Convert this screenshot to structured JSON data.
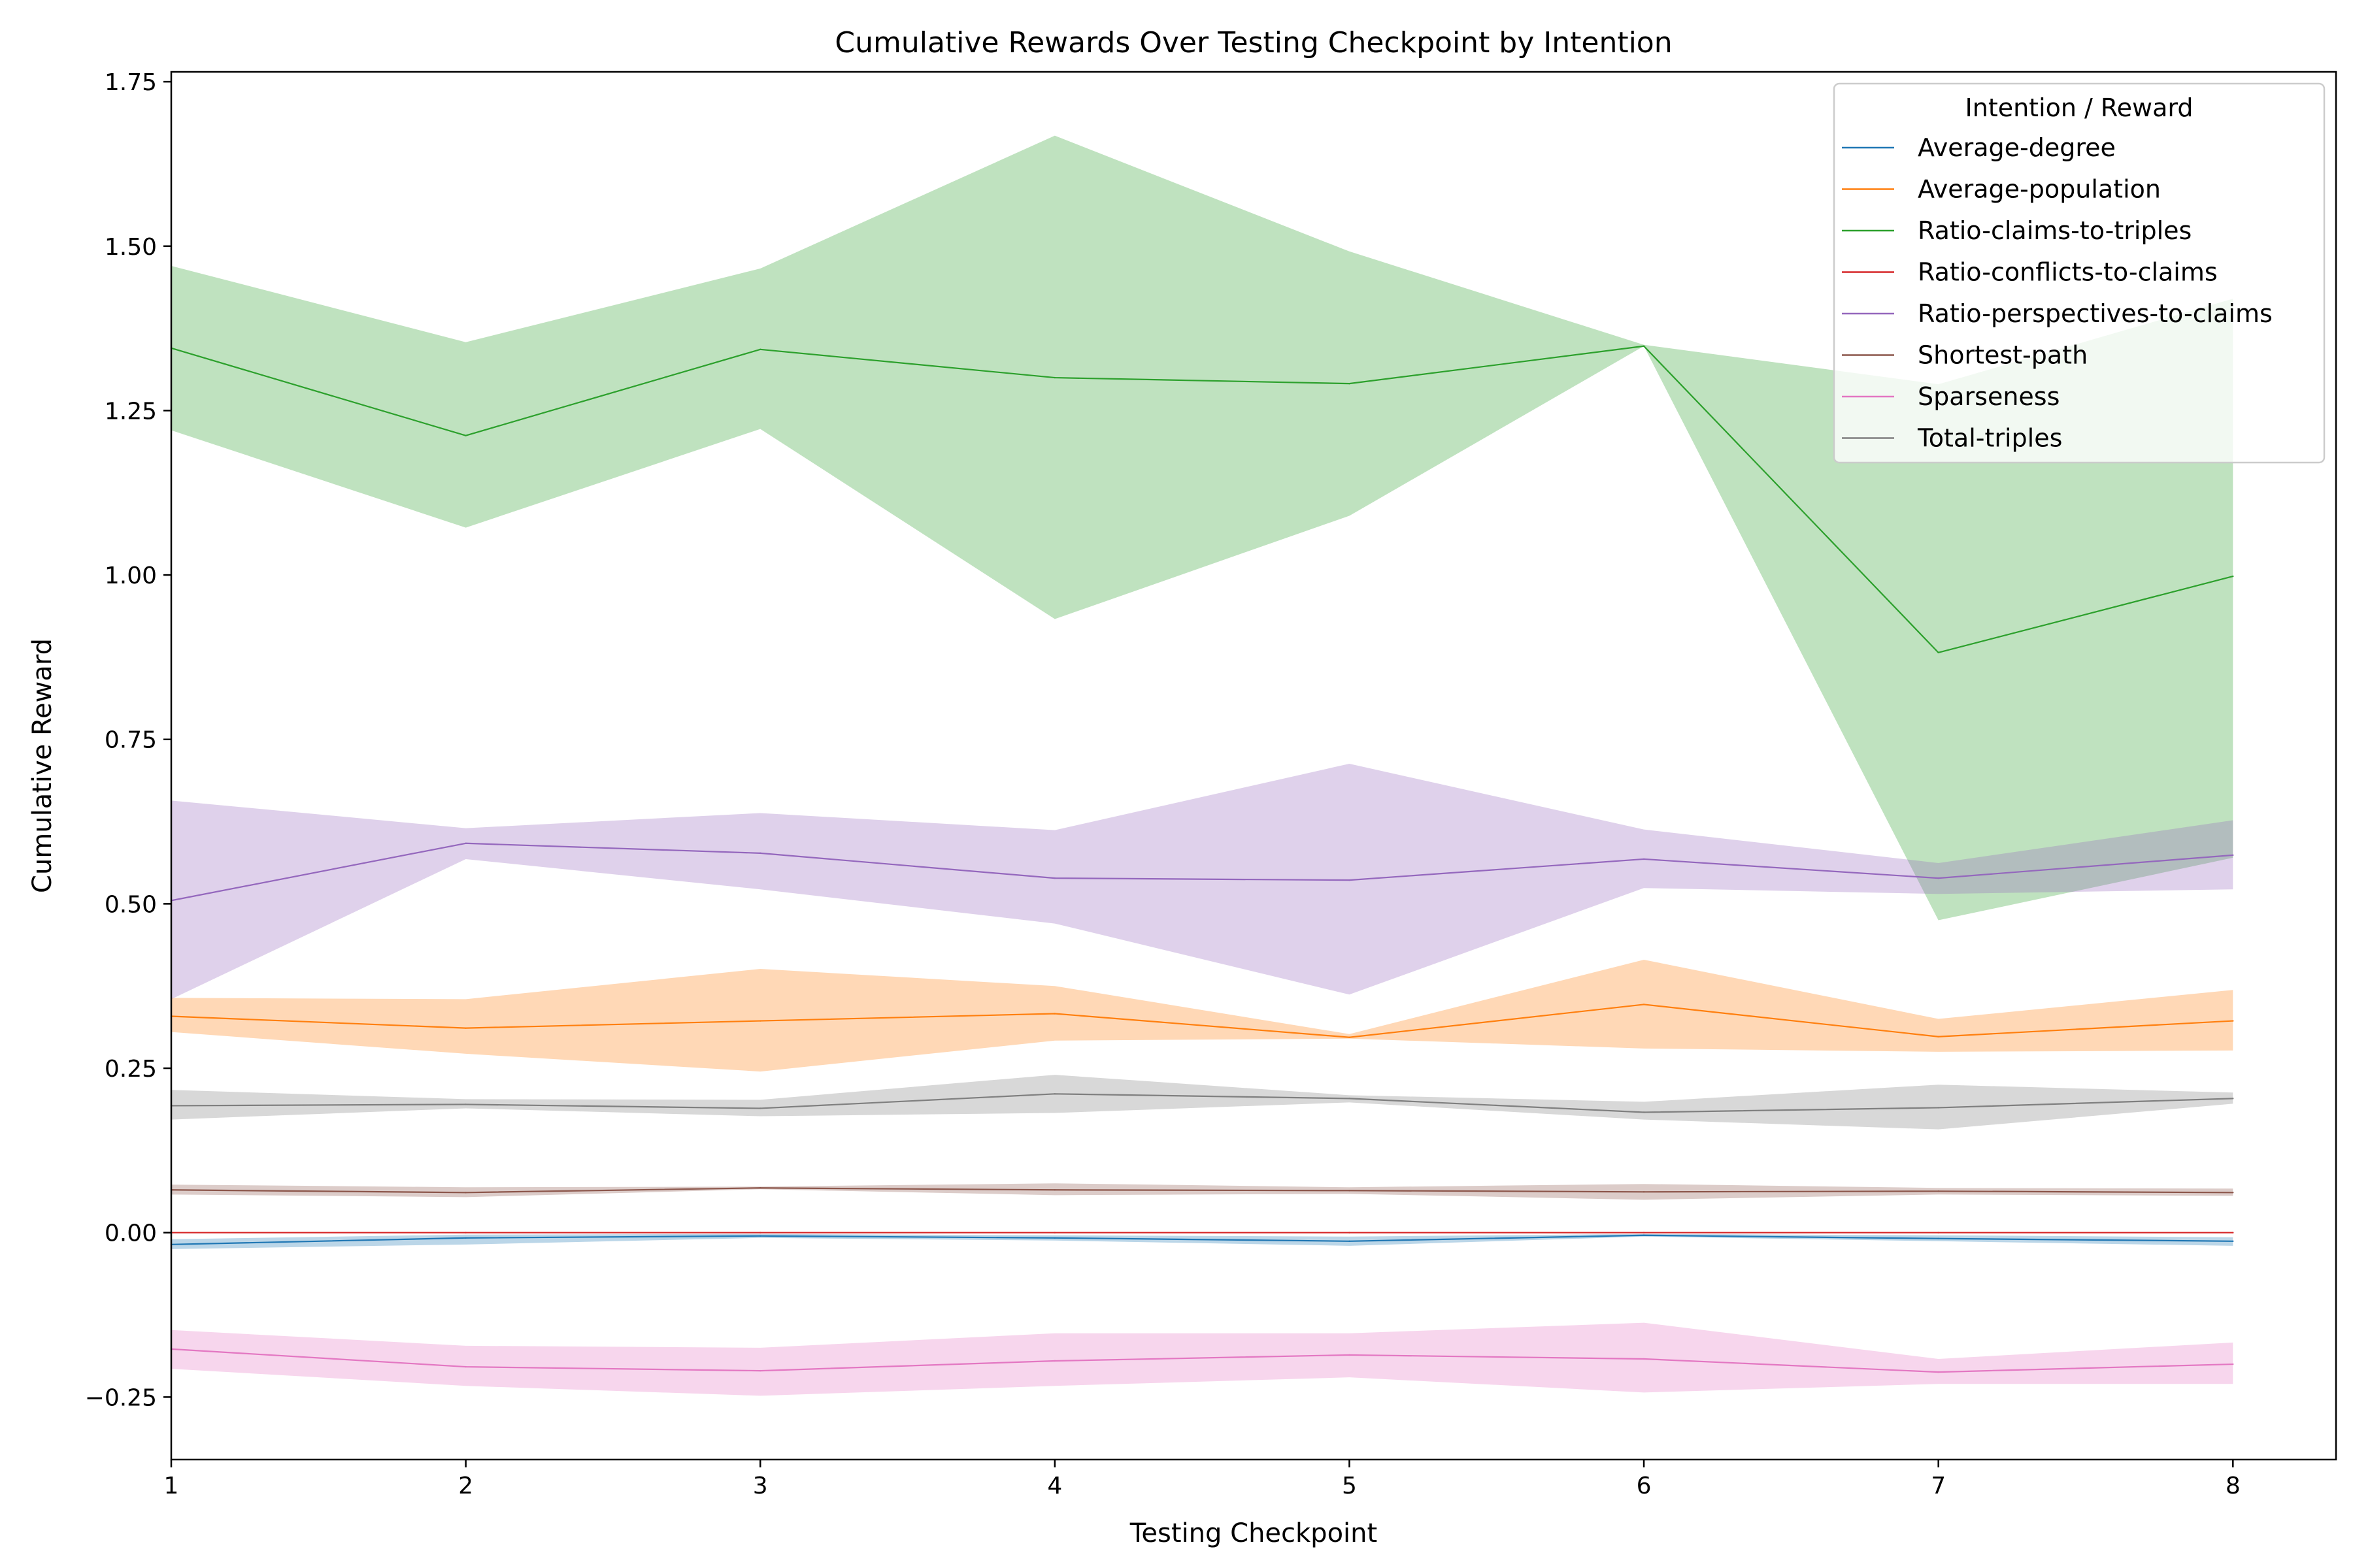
{
  "chart_data": {
    "type": "line",
    "title": "Cumulative Rewards Over Testing Checkpoint by Intention",
    "xlabel": "Testing Checkpoint",
    "ylabel": "Cumulative Reward",
    "xlim": [
      1,
      8.35
    ],
    "ylim": [
      -0.345,
      1.765
    ],
    "x": [
      1,
      2,
      3,
      4,
      5,
      6,
      7,
      8
    ],
    "x_ticks": [
      "1",
      "2",
      "3",
      "4",
      "5",
      "6",
      "7",
      "8"
    ],
    "y_ticks": [
      -0.25,
      0.0,
      0.25,
      0.5,
      0.75,
      1.0,
      1.25,
      1.5,
      1.75
    ],
    "y_tick_labels": [
      "−0.25",
      "0.00",
      "0.25",
      "0.50",
      "0.75",
      "1.00",
      "1.25",
      "1.50",
      "1.75"
    ],
    "grid": false,
    "legend": {
      "title": "Intention / Reward",
      "placement": "top-right"
    },
    "series": [
      {
        "name": "Average-degree",
        "color": "#1f77b4",
        "values": [
          -0.018,
          -0.008,
          -0.005,
          -0.008,
          -0.013,
          -0.004,
          -0.009,
          -0.013
        ],
        "lower": [
          -0.025,
          -0.018,
          -0.008,
          -0.012,
          -0.02,
          -0.006,
          -0.013,
          -0.02
        ],
        "upper": [
          -0.01,
          -0.003,
          -0.002,
          -0.004,
          -0.006,
          -0.002,
          -0.004,
          -0.007
        ]
      },
      {
        "name": "Average-population",
        "color": "#ff7f0e",
        "values": [
          0.329,
          0.311,
          0.322,
          0.333,
          0.297,
          0.347,
          0.298,
          0.322
        ],
        "lower": [
          0.305,
          0.272,
          0.245,
          0.292,
          0.295,
          0.28,
          0.275,
          0.277
        ],
        "upper": [
          0.357,
          0.355,
          0.401,
          0.375,
          0.302,
          0.415,
          0.325,
          0.369
        ]
      },
      {
        "name": "Ratio-claims-to-triples",
        "color": "#2ca02c",
        "values": [
          1.345,
          1.212,
          1.343,
          1.3,
          1.291,
          1.348,
          0.882,
          0.998
        ],
        "lower": [
          1.22,
          1.072,
          1.222,
          0.933,
          1.09,
          1.348,
          0.475,
          0.57
        ],
        "upper": [
          1.47,
          1.354,
          1.466,
          1.668,
          1.492,
          1.35,
          1.29,
          1.42
        ]
      },
      {
        "name": "Ratio-conflicts-to-claims",
        "color": "#d62728",
        "values": [
          0.0,
          0.0,
          0.0,
          0.0,
          0.0,
          0.0,
          0.0,
          0.0
        ],
        "lower": [
          0.0,
          0.0,
          0.0,
          0.0,
          0.0,
          0.0,
          0.0,
          0.0
        ],
        "upper": [
          0.0,
          0.0,
          0.0,
          0.0,
          0.0,
          0.0,
          0.0,
          0.0
        ]
      },
      {
        "name": "Ratio-perspectives-to-claims",
        "color": "#9467bd",
        "values": [
          0.505,
          0.592,
          0.577,
          0.539,
          0.536,
          0.568,
          0.539,
          0.574
        ],
        "lower": [
          0.355,
          0.568,
          0.522,
          0.47,
          0.362,
          0.524,
          0.515,
          0.522
        ],
        "upper": [
          0.657,
          0.615,
          0.638,
          0.612,
          0.713,
          0.613,
          0.562,
          0.627
        ]
      },
      {
        "name": "Shortest-path",
        "color": "#8c564b",
        "values": [
          0.065,
          0.061,
          0.068,
          0.065,
          0.064,
          0.062,
          0.063,
          0.061
        ],
        "lower": [
          0.058,
          0.054,
          0.066,
          0.057,
          0.059,
          0.05,
          0.058,
          0.056
        ],
        "upper": [
          0.073,
          0.069,
          0.07,
          0.075,
          0.069,
          0.074,
          0.068,
          0.067
        ]
      },
      {
        "name": "Sparseness",
        "color": "#e377c2",
        "values": [
          -0.177,
          -0.204,
          -0.21,
          -0.195,
          -0.186,
          -0.192,
          -0.212,
          -0.2
        ],
        "lower": [
          -0.207,
          -0.233,
          -0.248,
          -0.233,
          -0.22,
          -0.243,
          -0.23,
          -0.23
        ],
        "upper": [
          -0.148,
          -0.172,
          -0.175,
          -0.153,
          -0.153,
          -0.137,
          -0.192,
          -0.167
        ]
      },
      {
        "name": "Total-triples",
        "color": "#7f7f7f",
        "values": [
          0.193,
          0.195,
          0.189,
          0.211,
          0.204,
          0.183,
          0.19,
          0.204
        ],
        "lower": [
          0.172,
          0.189,
          0.177,
          0.182,
          0.198,
          0.172,
          0.157,
          0.196
        ],
        "upper": [
          0.217,
          0.203,
          0.202,
          0.24,
          0.209,
          0.199,
          0.225,
          0.213
        ]
      }
    ]
  }
}
